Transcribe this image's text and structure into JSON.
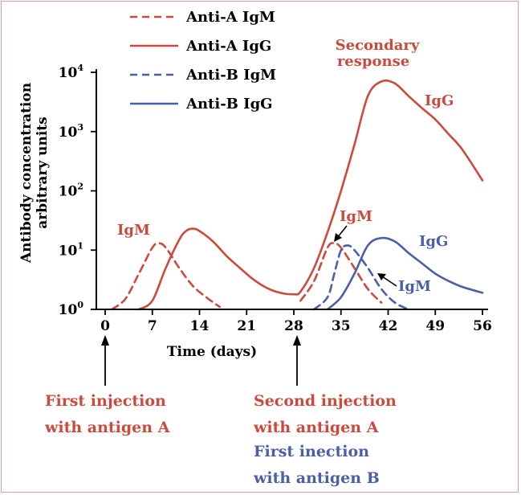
{
  "colors": {
    "antigen_a": "#cc4a3d",
    "antigen_b": "#4a5fa8",
    "axis": "#000000",
    "frame": "#e09aa6"
  },
  "legend": {
    "items": [
      {
        "label": "Anti-A IgM",
        "color": "#cc4a3d",
        "dash": true
      },
      {
        "label": "Anti-A IgG",
        "color": "#cc4a3d",
        "dash": false
      },
      {
        "label": "Anti-B IgM",
        "color": "#4a5fa8",
        "dash": true
      },
      {
        "label": "Anti-B IgG",
        "color": "#4a5fa8",
        "dash": false
      }
    ]
  },
  "annotations": {
    "secondary_line1": "Secondary",
    "secondary_line2": "response",
    "igg_top": "IgG",
    "igm_primary": "IgM",
    "igm_secondary_a": "IgM",
    "igg_b": "IgG",
    "igm_b": "IgM"
  },
  "injections": {
    "first_a_line1": "First injection",
    "first_a_line2": "with antigen A",
    "second_a_line1": "Second injection",
    "second_a_line2": "with antigen A",
    "first_b_line1": "First inection",
    "first_b_line2": "with antigen B"
  },
  "chart_data": {
    "type": "line",
    "xlabel": "Time (days)",
    "ylabel_line1": "Antibody concentration",
    "ylabel_line2": "arbitrary units",
    "xlim": [
      0,
      56
    ],
    "ylim": [
      1,
      10000
    ],
    "y_scale": "log",
    "x_ticks": [
      0,
      7,
      14,
      21,
      28,
      35,
      42,
      49,
      56
    ],
    "x_tick_labels": [
      "0",
      "7",
      "14",
      "21",
      "28",
      "35",
      "42",
      "49",
      "56"
    ],
    "y_ticks": [
      1,
      10,
      100,
      1000,
      10000
    ],
    "y_tick_labels": [
      {
        "base": "10",
        "exp": "0"
      },
      {
        "base": "10",
        "exp": "1"
      },
      {
        "base": "10",
        "exp": "2"
      },
      {
        "base": "10",
        "exp": "3"
      },
      {
        "base": "10",
        "exp": "4"
      }
    ],
    "series": [
      {
        "name": "Anti-A IgM",
        "color": "#cc4a3d",
        "dash": true,
        "points": [
          [
            1,
            1.0
          ],
          [
            3,
            1.5
          ],
          [
            5,
            4
          ],
          [
            7,
            11
          ],
          [
            8,
            13
          ],
          [
            9,
            11
          ],
          [
            11,
            5
          ],
          [
            13,
            2.5
          ],
          [
            15,
            1.6
          ],
          [
            17,
            1.1
          ],
          [
            29,
            1.4
          ],
          [
            31,
            3
          ],
          [
            33,
            11
          ],
          [
            34,
            13
          ],
          [
            35,
            11
          ],
          [
            37,
            5
          ],
          [
            39,
            2.2
          ],
          [
            41,
            1.3
          ]
        ]
      },
      {
        "name": "Anti-A IgG",
        "color": "#cc4a3d",
        "dash": false,
        "points": [
          [
            5,
            1.0
          ],
          [
            7,
            1.4
          ],
          [
            9,
            5
          ],
          [
            11,
            15
          ],
          [
            12,
            21
          ],
          [
            13,
            23
          ],
          [
            14,
            21
          ],
          [
            16,
            14
          ],
          [
            18,
            8
          ],
          [
            20,
            5
          ],
          [
            22,
            3.2
          ],
          [
            24,
            2.3
          ],
          [
            26,
            1.9
          ],
          [
            28,
            1.8
          ],
          [
            29,
            2.0
          ],
          [
            31,
            5
          ],
          [
            33,
            20
          ],
          [
            35,
            100
          ],
          [
            37,
            600
          ],
          [
            39,
            4000
          ],
          [
            41,
            7000
          ],
          [
            43,
            6500
          ],
          [
            45,
            4000
          ],
          [
            47,
            2500
          ],
          [
            49,
            1600
          ],
          [
            51,
            900
          ],
          [
            53,
            500
          ],
          [
            56,
            150
          ]
        ]
      },
      {
        "name": "Anti-B IgM",
        "color": "#4a5fa8",
        "dash": true,
        "points": [
          [
            31,
            1.0
          ],
          [
            33,
            1.6
          ],
          [
            34,
            4
          ],
          [
            35,
            10
          ],
          [
            36,
            12
          ],
          [
            37,
            10
          ],
          [
            39,
            5
          ],
          [
            41,
            2.2
          ],
          [
            43,
            1.3
          ],
          [
            45,
            1.0
          ]
        ]
      },
      {
        "name": "Anti-B IgG",
        "color": "#4a5fa8",
        "dash": false,
        "points": [
          [
            33,
            1.0
          ],
          [
            35,
            1.6
          ],
          [
            37,
            4
          ],
          [
            39,
            12
          ],
          [
            41,
            16
          ],
          [
            43,
            14
          ],
          [
            45,
            9
          ],
          [
            47,
            6
          ],
          [
            49,
            4
          ],
          [
            51,
            3
          ],
          [
            53,
            2.4
          ],
          [
            56,
            1.9
          ]
        ]
      }
    ]
  }
}
